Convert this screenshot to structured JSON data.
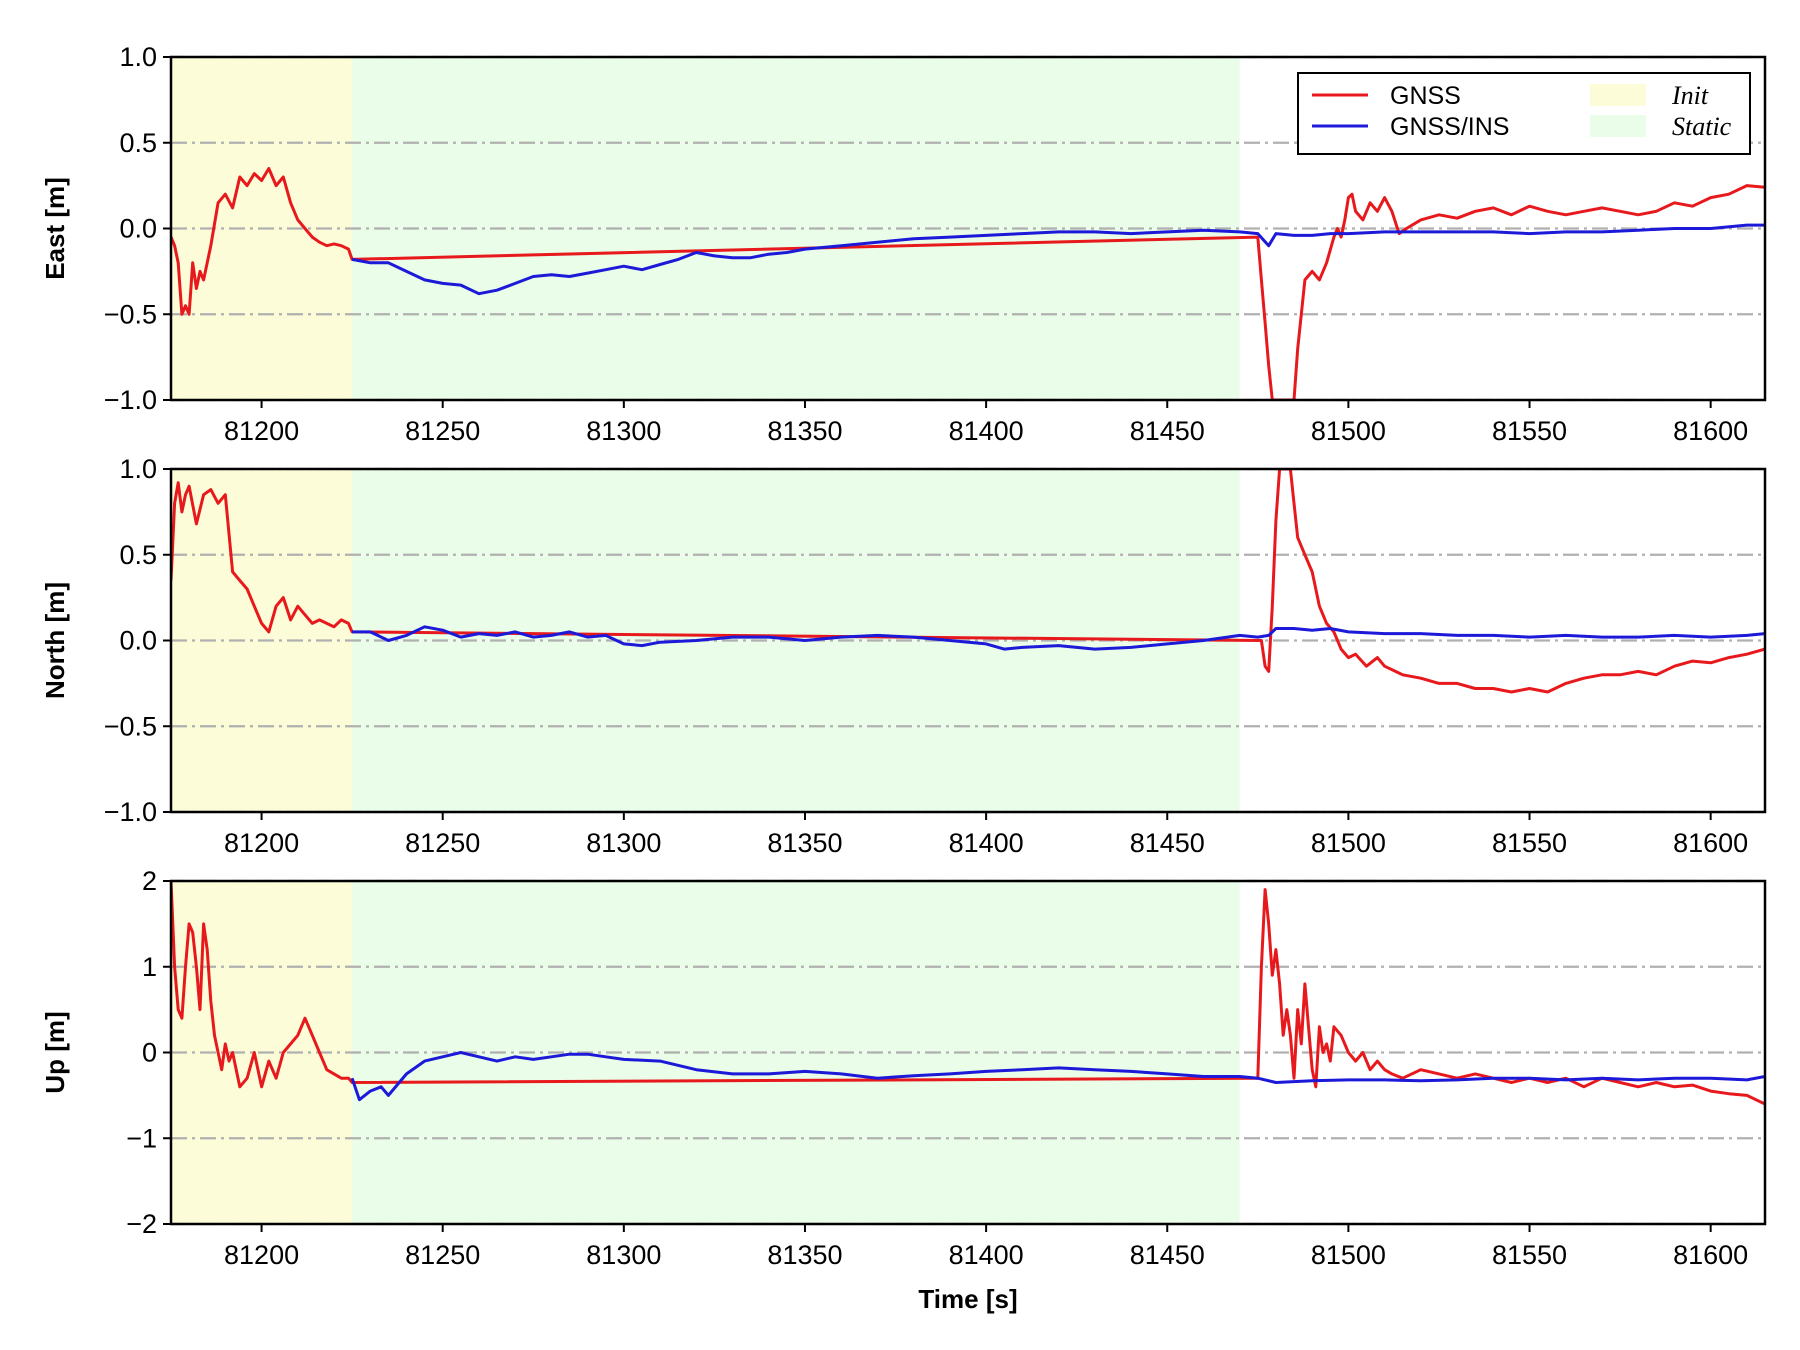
{
  "chart_data": {
    "type": "line",
    "xlabel": "Time [s]",
    "xlim": [
      81175,
      81615
    ],
    "xticks": [
      81200,
      81250,
      81300,
      81350,
      81400,
      81450,
      81500,
      81550,
      81600
    ],
    "grid": "horizontal dash-dot at y ticks",
    "legend_placement": "top-right of first panel",
    "legend": [
      {
        "name": "GNSS",
        "kind": "line",
        "color": "#e8191c"
      },
      {
        "name": "GNSS/INS",
        "kind": "line",
        "color": "#1c19d8"
      },
      {
        "name": "Init",
        "kind": "region",
        "color": "#fdfcd8"
      },
      {
        "name": "Static",
        "kind": "region",
        "color": "#e9fde8"
      }
    ],
    "regions": [
      {
        "name": "Init",
        "x": [
          81175,
          81225
        ],
        "color": "#fdfcd8"
      },
      {
        "name": "Static",
        "x": [
          81225,
          81470
        ],
        "color": "#e9fde8"
      }
    ],
    "panels": [
      {
        "ylabel": "East [m]",
        "ylim": [
          -1.0,
          1.0
        ],
        "yticks": [
          -1.0,
          -0.5,
          0.0,
          0.5,
          1.0
        ],
        "ytick_labels": [
          "−1.0",
          "−0.5",
          "0.0",
          "0.5",
          "1.0"
        ],
        "series": [
          {
            "name": "GNSS",
            "color": "#e8191c",
            "x": [
              81175,
              81176,
              81177,
              81178,
              81179,
              81180,
              81181,
              81182,
              81183,
              81184,
              81186,
              81188,
              81190,
              81192,
              81194,
              81196,
              81198,
              81200,
              81202,
              81204,
              81206,
              81208,
              81210,
              81212,
              81214,
              81216,
              81218,
              81220,
              81222,
              81224,
              81225,
              81475,
              81476,
              81477,
              81478,
              81479,
              81480,
              81481,
              81482,
              81483,
              81484,
              81485,
              81486,
              81487,
              81488,
              81490,
              81492,
              81494,
              81496,
              81497,
              81498,
              81499,
              81500,
              81501,
              81502,
              81504,
              81506,
              81508,
              81510,
              81512,
              81514,
              81516,
              81520,
              81525,
              81530,
              81535,
              81540,
              81545,
              81550,
              81555,
              81560,
              81565,
              81570,
              81575,
              81580,
              81585,
              81590,
              81595,
              81600,
              81605,
              81610,
              81615
            ],
            "y": [
              -0.05,
              -0.1,
              -0.2,
              -0.5,
              -0.45,
              -0.5,
              -0.2,
              -0.35,
              -0.25,
              -0.3,
              -0.1,
              0.15,
              0.2,
              0.12,
              0.3,
              0.25,
              0.32,
              0.28,
              0.35,
              0.25,
              0.3,
              0.15,
              0.05,
              0.0,
              -0.05,
              -0.08,
              -0.1,
              -0.09,
              -0.1,
              -0.12,
              -0.18,
              -0.05,
              -0.3,
              -0.55,
              -0.8,
              -1.0,
              -1.0,
              -1.0,
              -1.0,
              -1.0,
              -1.0,
              -1.0,
              -0.7,
              -0.5,
              -0.3,
              -0.25,
              -0.3,
              -0.2,
              -0.05,
              0.0,
              -0.05,
              0.05,
              0.18,
              0.2,
              0.1,
              0.05,
              0.15,
              0.1,
              0.18,
              0.1,
              -0.03,
              0.0,
              0.05,
              0.08,
              0.06,
              0.1,
              0.12,
              0.08,
              0.13,
              0.1,
              0.08,
              0.1,
              0.12,
              0.1,
              0.08,
              0.1,
              0.15,
              0.13,
              0.18,
              0.2,
              0.25,
              0.24
            ]
          },
          {
            "name": "GNSS/INS",
            "color": "#1c19d8",
            "x": [
              81225,
              81230,
              81235,
              81240,
              81245,
              81250,
              81255,
              81260,
              81265,
              81270,
              81275,
              81280,
              81285,
              81290,
              81295,
              81300,
              81305,
              81310,
              81315,
              81320,
              81325,
              81330,
              81335,
              81340,
              81345,
              81350,
              81360,
              81370,
              81380,
              81390,
              81400,
              81410,
              81420,
              81430,
              81440,
              81450,
              81460,
              81470,
              81475,
              81478,
              81480,
              81485,
              81490,
              81495,
              81500,
              81510,
              81520,
              81530,
              81540,
              81550,
              81560,
              81570,
              81580,
              81590,
              81600,
              81610,
              81615
            ],
            "y": [
              -0.18,
              -0.2,
              -0.2,
              -0.25,
              -0.3,
              -0.32,
              -0.33,
              -0.38,
              -0.36,
              -0.32,
              -0.28,
              -0.27,
              -0.28,
              -0.26,
              -0.24,
              -0.22,
              -0.24,
              -0.21,
              -0.18,
              -0.14,
              -0.16,
              -0.17,
              -0.17,
              -0.15,
              -0.14,
              -0.12,
              -0.1,
              -0.08,
              -0.06,
              -0.05,
              -0.04,
              -0.03,
              -0.02,
              -0.02,
              -0.03,
              -0.02,
              -0.01,
              -0.02,
              -0.03,
              -0.1,
              -0.03,
              -0.04,
              -0.04,
              -0.03,
              -0.03,
              -0.02,
              -0.02,
              -0.02,
              -0.02,
              -0.03,
              -0.02,
              -0.02,
              -0.01,
              0.0,
              0.0,
              0.02,
              0.02
            ]
          }
        ]
      },
      {
        "ylabel": "North [m]",
        "ylim": [
          -1.0,
          1.0
        ],
        "yticks": [
          -1.0,
          -0.5,
          0.0,
          0.5,
          1.0
        ],
        "ytick_labels": [
          "−1.0",
          "−0.5",
          "0.0",
          "0.5",
          "1.0"
        ],
        "series": [
          {
            "name": "GNSS",
            "color": "#e8191c",
            "x": [
              81175,
              81176,
              81177,
              81178,
              81179,
              81180,
              81182,
              81184,
              81186,
              81188,
              81190,
              81192,
              81194,
              81196,
              81198,
              81200,
              81202,
              81204,
              81206,
              81208,
              81210,
              81212,
              81214,
              81216,
              81218,
              81220,
              81222,
              81224,
              81225,
              81476,
              81477,
              81478,
              81479,
              81480,
              81481,
              81482,
              81483,
              81484,
              81485,
              81486,
              81488,
              81490,
              81492,
              81494,
              81496,
              81498,
              81500,
              81502,
              81505,
              81508,
              81510,
              81515,
              81520,
              81525,
              81530,
              81535,
              81540,
              81545,
              81550,
              81555,
              81560,
              81565,
              81570,
              81575,
              81580,
              81585,
              81590,
              81595,
              81600,
              81605,
              81610,
              81615
            ],
            "y": [
              0.35,
              0.8,
              0.92,
              0.75,
              0.85,
              0.9,
              0.68,
              0.85,
              0.88,
              0.8,
              0.85,
              0.4,
              0.35,
              0.3,
              0.2,
              0.1,
              0.05,
              0.2,
              0.25,
              0.12,
              0.2,
              0.15,
              0.1,
              0.12,
              0.1,
              0.08,
              0.12,
              0.1,
              0.05,
              0.0,
              -0.15,
              -0.18,
              0.2,
              0.7,
              1.0,
              1.0,
              1.0,
              1.0,
              0.8,
              0.6,
              0.5,
              0.4,
              0.2,
              0.1,
              0.05,
              -0.05,
              -0.1,
              -0.08,
              -0.15,
              -0.1,
              -0.15,
              -0.2,
              -0.22,
              -0.25,
              -0.25,
              -0.28,
              -0.28,
              -0.3,
              -0.28,
              -0.3,
              -0.25,
              -0.22,
              -0.2,
              -0.2,
              -0.18,
              -0.2,
              -0.15,
              -0.12,
              -0.13,
              -0.1,
              -0.08,
              -0.05
            ]
          },
          {
            "name": "GNSS/INS",
            "color": "#1c19d8",
            "x": [
              81225,
              81230,
              81235,
              81240,
              81245,
              81250,
              81255,
              81260,
              81265,
              81270,
              81275,
              81280,
              81285,
              81290,
              81295,
              81300,
              81305,
              81310,
              81320,
              81330,
              81340,
              81350,
              81360,
              81370,
              81380,
              81390,
              81400,
              81405,
              81410,
              81420,
              81430,
              81440,
              81450,
              81460,
              81470,
              81475,
              81478,
              81480,
              81485,
              81490,
              81495,
              81500,
              81510,
              81520,
              81530,
              81540,
              81550,
              81560,
              81570,
              81580,
              81590,
              81600,
              81610,
              81615
            ],
            "y": [
              0.05,
              0.05,
              0.0,
              0.03,
              0.08,
              0.06,
              0.02,
              0.04,
              0.03,
              0.05,
              0.02,
              0.03,
              0.05,
              0.02,
              0.03,
              -0.02,
              -0.03,
              -0.01,
              0.0,
              0.02,
              0.02,
              0.0,
              0.02,
              0.03,
              0.02,
              0.0,
              -0.02,
              -0.05,
              -0.04,
              -0.03,
              -0.05,
              -0.04,
              -0.02,
              0.0,
              0.03,
              0.02,
              0.03,
              0.07,
              0.07,
              0.06,
              0.07,
              0.05,
              0.04,
              0.04,
              0.03,
              0.03,
              0.02,
              0.03,
              0.02,
              0.02,
              0.03,
              0.02,
              0.03,
              0.04
            ]
          }
        ]
      },
      {
        "ylabel": "Up [m]",
        "ylim": [
          -2,
          2
        ],
        "yticks": [
          -2,
          -1,
          0,
          1,
          2
        ],
        "ytick_labels": [
          "−2",
          "−1",
          "0",
          "1",
          "2"
        ],
        "series": [
          {
            "name": "GNSS",
            "color": "#e8191c",
            "x": [
              81175,
              81176,
              81177,
              81178,
              81179,
              81180,
              81181,
              81182,
              81183,
              81184,
              81185,
              81186,
              81187,
              81188,
              81189,
              81190,
              81191,
              81192,
              81193,
              81194,
              81196,
              81198,
              81200,
              81202,
              81204,
              81206,
              81208,
              81210,
              81212,
              81214,
              81216,
              81218,
              81220,
              81222,
              81224,
              81225,
              81475,
              81476,
              81477,
              81478,
              81479,
              81480,
              81481,
              81482,
              81483,
              81484,
              81485,
              81486,
              81487,
              81488,
              81489,
              81490,
              81491,
              81492,
              81493,
              81494,
              81495,
              81496,
              81498,
              81500,
              81502,
              81504,
              81506,
              81508,
              81510,
              81512,
              81515,
              81520,
              81525,
              81530,
              81535,
              81540,
              81545,
              81550,
              81555,
              81560,
              81565,
              81570,
              81575,
              81580,
              81585,
              81590,
              81595,
              81600,
              81605,
              81610,
              81615
            ],
            "y": [
              2.0,
              1.0,
              0.5,
              0.4,
              1.0,
              1.5,
              1.4,
              1.0,
              0.5,
              1.5,
              1.2,
              0.6,
              0.2,
              0.0,
              -0.2,
              0.1,
              -0.1,
              0.0,
              -0.2,
              -0.4,
              -0.3,
              0.0,
              -0.4,
              -0.1,
              -0.3,
              0.0,
              0.1,
              0.2,
              0.4,
              0.2,
              0.0,
              -0.2,
              -0.25,
              -0.3,
              -0.3,
              -0.35,
              -0.3,
              1.0,
              1.9,
              1.5,
              0.9,
              1.2,
              0.8,
              0.2,
              0.5,
              0.2,
              -0.3,
              0.5,
              0.1,
              0.8,
              0.3,
              -0.2,
              -0.4,
              0.3,
              0.0,
              0.1,
              -0.1,
              0.3,
              0.2,
              0.0,
              -0.1,
              0.0,
              -0.2,
              -0.1,
              -0.2,
              -0.25,
              -0.3,
              -0.2,
              -0.25,
              -0.3,
              -0.25,
              -0.3,
              -0.35,
              -0.3,
              -0.35,
              -0.3,
              -0.4,
              -0.3,
              -0.35,
              -0.4,
              -0.35,
              -0.4,
              -0.38,
              -0.45,
              -0.48,
              -0.5,
              -0.6
            ]
          },
          {
            "name": "GNSS/INS",
            "color": "#1c19d8",
            "x": [
              81225,
              81227,
              81230,
              81233,
              81235,
              81240,
              81245,
              81250,
              81255,
              81260,
              81265,
              81270,
              81275,
              81280,
              81285,
              81290,
              81295,
              81300,
              81310,
              81320,
              81330,
              81340,
              81350,
              81360,
              81370,
              81380,
              81390,
              81400,
              81410,
              81420,
              81430,
              81440,
              81450,
              81460,
              81470,
              81475,
              81480,
              81490,
              81500,
              81510,
              81520,
              81530,
              81540,
              81550,
              81560,
              81570,
              81580,
              81590,
              81600,
              81610,
              81615
            ],
            "y": [
              -0.3,
              -0.55,
              -0.45,
              -0.4,
              -0.5,
              -0.25,
              -0.1,
              -0.05,
              0.0,
              -0.05,
              -0.1,
              -0.05,
              -0.08,
              -0.05,
              -0.02,
              -0.02,
              -0.05,
              -0.08,
              -0.1,
              -0.2,
              -0.25,
              -0.25,
              -0.22,
              -0.25,
              -0.3,
              -0.27,
              -0.25,
              -0.22,
              -0.2,
              -0.18,
              -0.2,
              -0.22,
              -0.25,
              -0.28,
              -0.28,
              -0.3,
              -0.35,
              -0.33,
              -0.32,
              -0.32,
              -0.33,
              -0.32,
              -0.3,
              -0.3,
              -0.32,
              -0.3,
              -0.32,
              -0.3,
              -0.3,
              -0.32,
              -0.28
            ]
          }
        ]
      }
    ]
  }
}
